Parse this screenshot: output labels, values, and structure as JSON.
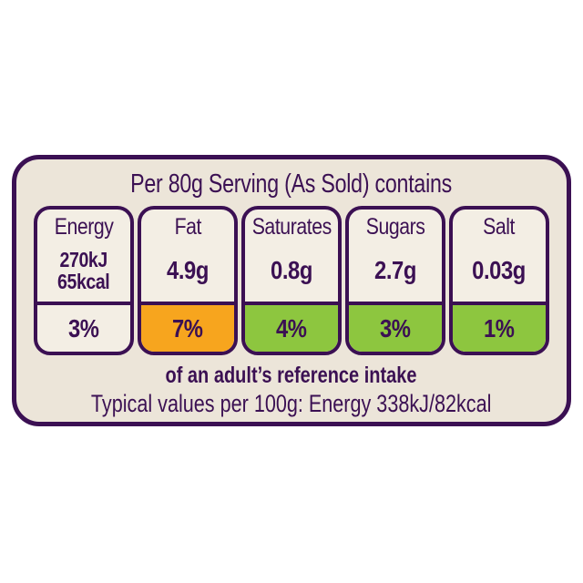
{
  "header": "Per 80g Serving (As Sold) contains",
  "columns": [
    {
      "label": "Energy",
      "value": "270kJ\n65kcal",
      "percent": "3%",
      "level": "plain"
    },
    {
      "label": "Fat",
      "value": "4.9g",
      "percent": "7%",
      "level": "amber"
    },
    {
      "label": "Saturates",
      "value": "0.8g",
      "percent": "4%",
      "level": "green"
    },
    {
      "label": "Sugars",
      "value": "2.7g",
      "percent": "3%",
      "level": "green"
    },
    {
      "label": "Salt",
      "value": "0.03g",
      "percent": "1%",
      "level": "green"
    }
  ],
  "footer_bold": "of an adult’s reference intake",
  "footer_note": "Typical values per 100g: Energy 338kJ/82kcal",
  "colors": {
    "amber": "#F7A51E",
    "green": "#8DC63F",
    "purple": "#3B1053",
    "panel_bg": "#ECE5D9",
    "cell_bg": "#F3EEE4"
  }
}
